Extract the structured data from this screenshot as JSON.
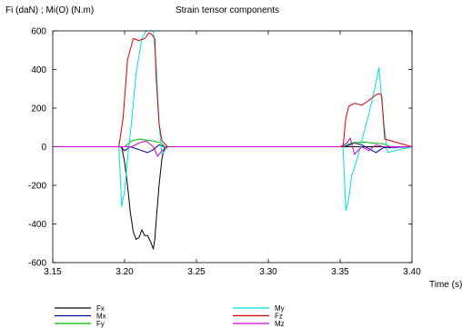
{
  "chart_data": {
    "type": "line",
    "title": "Strain tensor components",
    "ylabel": "Fi (daN) ; Mi(O) (N.m)",
    "xlabel": "Time (s)",
    "xlim": [
      3.15,
      3.4
    ],
    "ylim": [
      -600,
      600
    ],
    "xticks": [
      "3.15",
      "3.20",
      "3.25",
      "3.30",
      "3.35",
      "3.40"
    ],
    "yticks": [
      "-600",
      "-400",
      "-200",
      "0",
      "200",
      "400",
      "600"
    ],
    "legend_placement": "bottom",
    "series": [
      {
        "name": "Fx",
        "color": "#000000",
        "x": [
          3.15,
          3.198,
          3.2,
          3.202,
          3.204,
          3.206,
          3.208,
          3.21,
          3.212,
          3.214,
          3.216,
          3.218,
          3.22,
          3.221,
          3.222,
          3.224,
          3.226,
          3.228,
          3.4
        ],
        "y": [
          0,
          0,
          -80,
          -200,
          -340,
          -440,
          -480,
          -470,
          -430,
          -460,
          -460,
          -490,
          -530,
          -480,
          -380,
          -200,
          -60,
          0,
          0
        ]
      },
      {
        "name": "Mx",
        "color": "#00008b",
        "x": [
          3.15,
          3.197,
          3.2,
          3.204,
          3.208,
          3.212,
          3.216,
          3.22,
          3.224,
          3.228,
          3.35,
          3.355,
          3.36,
          3.365,
          3.37,
          3.375,
          3.38,
          3.4
        ],
        "y": [
          0,
          0,
          -20,
          0,
          -10,
          -20,
          -30,
          -15,
          10,
          0,
          0,
          5,
          20,
          10,
          -10,
          -30,
          -5,
          0
        ]
      },
      {
        "name": "Fy",
        "color": "#00bf00",
        "x": [
          3.15,
          3.2,
          3.205,
          3.21,
          3.215,
          3.22,
          3.225,
          3.228,
          3.352,
          3.358,
          3.365,
          3.372,
          3.38,
          3.385,
          3.4
        ],
        "y": [
          0,
          0,
          30,
          40,
          35,
          30,
          20,
          0,
          0,
          20,
          25,
          20,
          15,
          0,
          0
        ]
      },
      {
        "name": "My",
        "color": "#00e0e0",
        "x": [
          3.15,
          3.196,
          3.198,
          3.2,
          3.202,
          3.205,
          3.208,
          3.212,
          3.215,
          3.218,
          3.22,
          3.222,
          3.224,
          3.226,
          3.23,
          3.352,
          3.354,
          3.356,
          3.358,
          3.362,
          3.366,
          3.37,
          3.374,
          3.377,
          3.38,
          3.383,
          3.4
        ],
        "y": [
          0,
          0,
          -310,
          -230,
          -60,
          140,
          380,
          560,
          600,
          600,
          600,
          420,
          120,
          -40,
          0,
          0,
          -330,
          -270,
          -150,
          -60,
          60,
          170,
          300,
          410,
          150,
          -30,
          0
        ]
      },
      {
        "name": "Fz",
        "color": "#d40000",
        "x": [
          3.15,
          3.196,
          3.199,
          3.202,
          3.206,
          3.21,
          3.214,
          3.217,
          3.219,
          3.221,
          3.222,
          3.224,
          3.226,
          3.23,
          3.352,
          3.354,
          3.356,
          3.36,
          3.365,
          3.37,
          3.375,
          3.378,
          3.379,
          3.381,
          3.4
        ],
        "y": [
          0,
          0,
          150,
          450,
          560,
          550,
          560,
          590,
          580,
          560,
          350,
          120,
          30,
          0,
          0,
          150,
          210,
          225,
          215,
          240,
          270,
          275,
          260,
          40,
          0
        ]
      },
      {
        "name": "Mz",
        "color": "#d000d0",
        "x": [
          3.15,
          3.205,
          3.21,
          3.215,
          3.22,
          3.223,
          3.226,
          3.23,
          3.35,
          3.355,
          3.357,
          3.36,
          3.365,
          3.37,
          3.375,
          3.38,
          3.4
        ],
        "y": [
          0,
          0,
          20,
          30,
          0,
          -50,
          -20,
          0,
          0,
          20,
          45,
          -40,
          0,
          -20,
          10,
          0,
          0
        ]
      }
    ]
  }
}
